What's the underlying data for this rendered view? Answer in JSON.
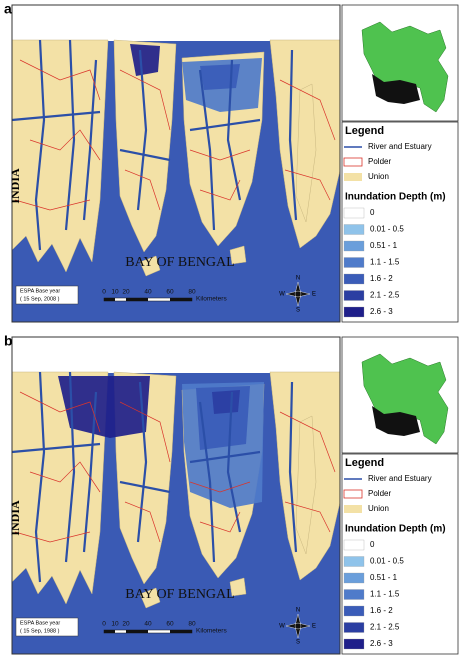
{
  "panels": [
    {
      "label": "a",
      "map_labels": {
        "country": "INDIA",
        "sea": "BAY OF BENGAL"
      },
      "espa": [
        "ESPA Base year",
        "( 15 Sep, 2008 )"
      ],
      "scale": {
        "ticks": [
          0,
          10,
          20,
          40,
          60,
          80
        ],
        "unit": "Kilometers"
      },
      "compass": {
        "n": "N",
        "s": "S",
        "e": "E",
        "w": "W"
      },
      "legend": {
        "title": "Legend",
        "features": [
          {
            "label": "River and Estuary",
            "color": "#2b4fa8"
          },
          {
            "label": "Polder",
            "color": "#d9342b"
          },
          {
            "label": "Union",
            "color": "#f3e1a6"
          }
        ],
        "depth_title": "Inundation Depth (m)",
        "classes": [
          {
            "label": "0",
            "color": "#ffffff"
          },
          {
            "label": "0.01 - 0.5",
            "color": "#8fc3ea"
          },
          {
            "label": "0.51 - 1",
            "color": "#6a9edb"
          },
          {
            "label": "1.1 - 1.5",
            "color": "#4f7bca"
          },
          {
            "label": "1.6 - 2",
            "color": "#3a5cb8"
          },
          {
            "label": "2.1 - 2.5",
            "color": "#2b3ea2"
          },
          {
            "label": "2.6 - 3",
            "color": "#1f1f8a"
          }
        ]
      }
    },
    {
      "label": "b",
      "map_labels": {
        "country": "INDIA",
        "sea": "BAY OF BENGAL"
      },
      "espa": [
        "ESPA Base year",
        "( 15 Sep, 1988 )"
      ],
      "scale": {
        "ticks": [
          0,
          10,
          20,
          40,
          60,
          80
        ],
        "unit": "Kilometers"
      },
      "compass": {
        "n": "N",
        "s": "S",
        "e": "E",
        "w": "W"
      },
      "legend": {
        "title": "Legend",
        "features": [
          {
            "label": "River and Estuary",
            "color": "#2b4fa8"
          },
          {
            "label": "Polder",
            "color": "#d9342b"
          },
          {
            "label": "Union",
            "color": "#f3e1a6"
          }
        ],
        "depth_title": "Inundation Depth (m)",
        "classes": [
          {
            "label": "0",
            "color": "#ffffff"
          },
          {
            "label": "0.01 - 0.5",
            "color": "#8fc3ea"
          },
          {
            "label": "0.51 - 1",
            "color": "#6a9edb"
          },
          {
            "label": "1.1 - 1.5",
            "color": "#4f7bca"
          },
          {
            "label": "1.6 - 2",
            "color": "#3a5cb8"
          },
          {
            "label": "2.1 - 2.5",
            "color": "#2b3ea2"
          },
          {
            "label": "2.6 - 3",
            "color": "#1f1f8a"
          }
        ]
      }
    }
  ]
}
